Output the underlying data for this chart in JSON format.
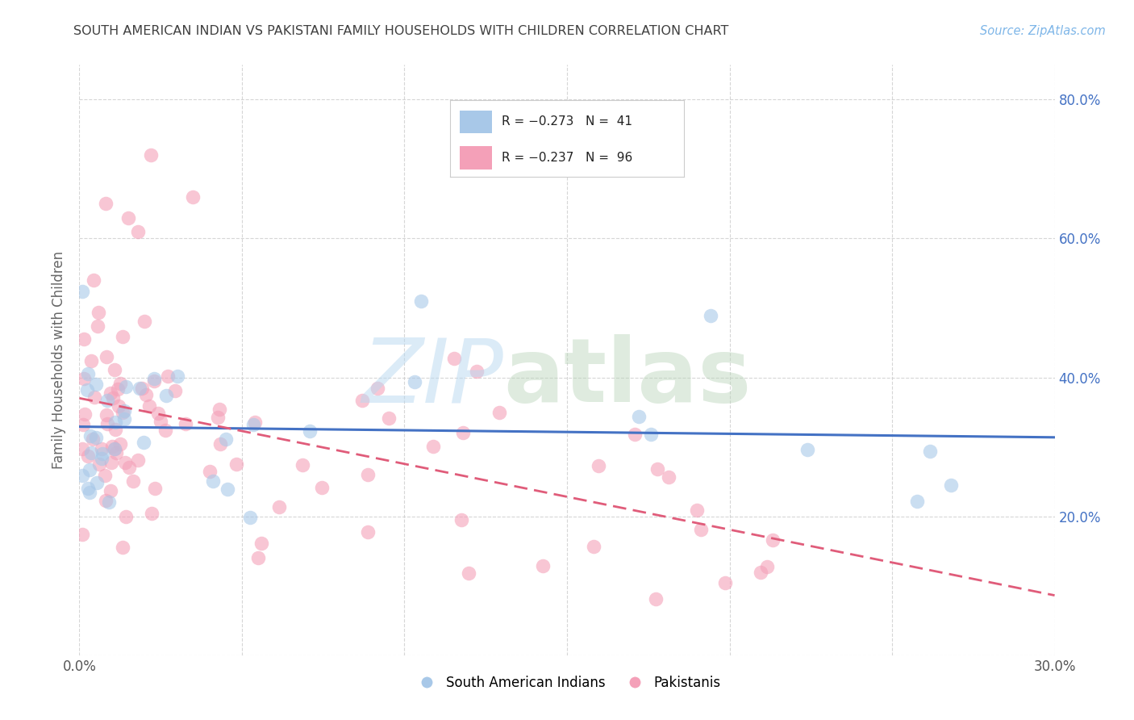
{
  "title": "SOUTH AMERICAN INDIAN VS PAKISTANI FAMILY HOUSEHOLDS WITH CHILDREN CORRELATION CHART",
  "source": "Source: ZipAtlas.com",
  "ylabel": "Family Households with Children",
  "xlim": [
    0.0,
    0.3
  ],
  "ylim": [
    0.0,
    0.85
  ],
  "blue_color": "#a8c8e8",
  "pink_color": "#f4a0b8",
  "blue_line_color": "#4472c4",
  "pink_line_color": "#e05c7a",
  "background_color": "#ffffff",
  "grid_color": "#cccccc",
  "title_color": "#404040",
  "source_color": "#7eb6e8",
  "legend_blue_text": "R = −0.273   N =  41",
  "legend_pink_text": "R = −0.237   N =  96",
  "bottom_legend_blue": "South American Indians",
  "bottom_legend_pink": "Pakistanis"
}
